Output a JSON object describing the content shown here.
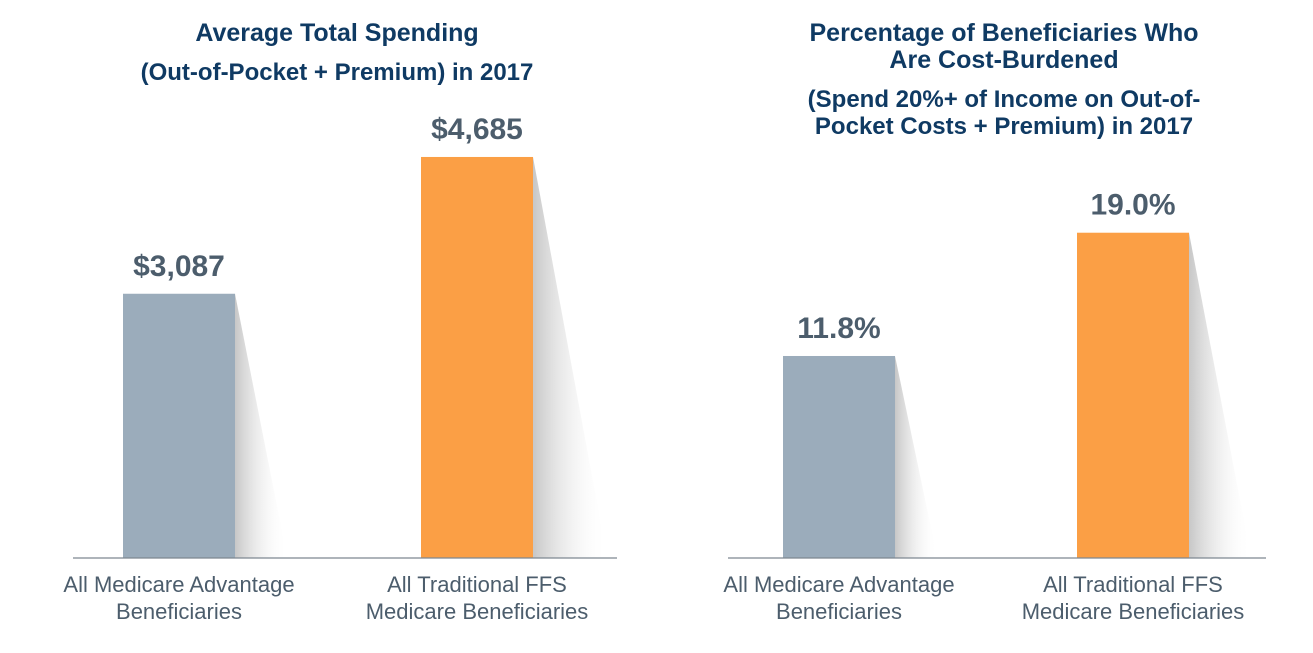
{
  "colors": {
    "advantage": "#9bacbb",
    "traditional": "#fb9f45",
    "title": "#0f3a63",
    "label": "#4c5d6c",
    "axis": "#7d8791"
  },
  "chart_data": [
    {
      "type": "bar",
      "title": "Average Total Spending",
      "subtitle": "(Out-of-Pocket + Premium) in 2017",
      "categories": [
        [
          "All Medicare Advantage",
          "Beneficiaries"
        ],
        [
          "All Traditional FFS",
          "Medicare Beneficiaries"
        ]
      ],
      "values": [
        3087,
        4685
      ],
      "value_labels": [
        "$3,087",
        "$4,685"
      ],
      "ylim": [
        0,
        5000
      ],
      "xlabel": "",
      "ylabel": ""
    },
    {
      "type": "bar",
      "title": [
        "Percentage of Beneficiaries Who",
        "Are Cost-Burdened"
      ],
      "subtitle": [
        "(Spend 20%+ of Income on Out-of-",
        "Pocket Costs + Premium) in 2017"
      ],
      "categories": [
        [
          "All Medicare Advantage",
          "Beneficiaries"
        ],
        [
          "All Traditional FFS",
          "Medicare Beneficiaries"
        ]
      ],
      "values": [
        11.8,
        19.0
      ],
      "value_labels": [
        "11.8%",
        "19.0%"
      ],
      "ylim": [
        0,
        25
      ],
      "xlabel": "",
      "ylabel": ""
    }
  ]
}
